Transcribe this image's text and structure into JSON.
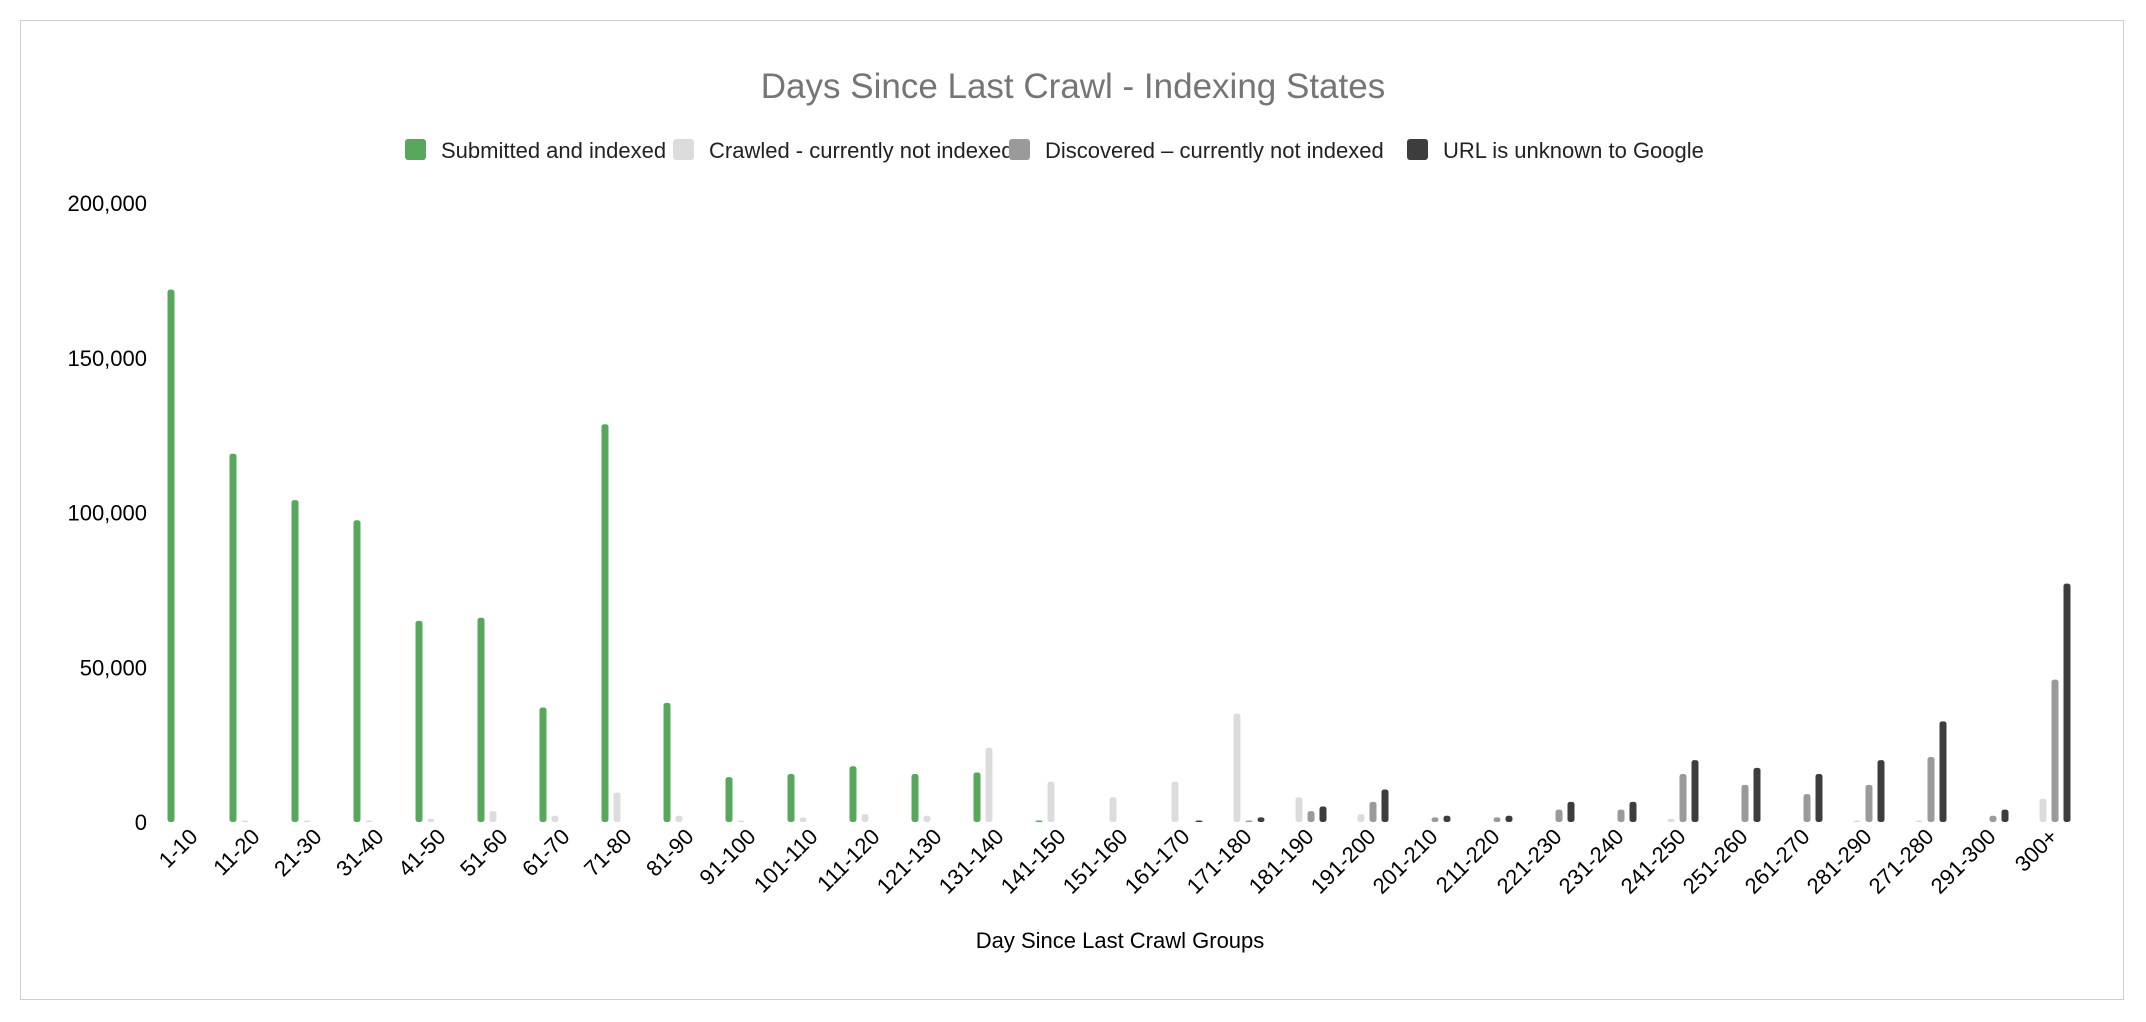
{
  "chart_data": {
    "type": "bar",
    "title": "Days Since Last Crawl - Indexing States",
    "xlabel": "Day Since Last Crawl Groups",
    "ylabel": "",
    "ylim": [
      0,
      200000
    ],
    "yticks": [
      0,
      50000,
      100000,
      150000,
      200000
    ],
    "ytick_labels": [
      "0",
      "50,000",
      "100,000",
      "150,000",
      "200,000"
    ],
    "grid": false,
    "legend_position": "top",
    "categories": [
      "1-10",
      "11-20",
      "21-30",
      "31-40",
      "41-50",
      "51-60",
      "61-70",
      "71-80",
      "81-90",
      "91-100",
      "101-110",
      "111-120",
      "121-130",
      "131-140",
      "141-150",
      "151-160",
      "161-170",
      "171-180",
      "181-190",
      "191-200",
      "201-210",
      "211-220",
      "221-230",
      "231-240",
      "241-250",
      "251-260",
      "261-270",
      "281-290",
      "271-280",
      "291-300",
      "300+"
    ],
    "series": [
      {
        "name": "Submitted and indexed",
        "color": "#57a85c",
        "values": [
          172000,
          119000,
          104000,
          97500,
          65000,
          66000,
          37000,
          128500,
          38500,
          14500,
          15500,
          18000,
          15500,
          16000,
          500,
          0,
          0,
          0,
          0,
          0,
          0,
          0,
          0,
          0,
          0,
          0,
          0,
          0,
          0,
          0,
          0
        ]
      },
      {
        "name": "Crawled - currently not indexed",
        "color": "#dcdcdc",
        "values": [
          0,
          500,
          500,
          500,
          1000,
          3500,
          2000,
          9500,
          2000,
          500,
          1500,
          2500,
          2000,
          24000,
          13000,
          8000,
          13000,
          35000,
          8000,
          2500,
          0,
          0,
          0,
          0,
          1000,
          0,
          0,
          500,
          500,
          0,
          7500
        ]
      },
      {
        "name": "Discovered – currently not indexed",
        "color": "#9a9a9a",
        "values": [
          0,
          0,
          0,
          0,
          0,
          0,
          0,
          0,
          0,
          0,
          0,
          0,
          0,
          0,
          0,
          0,
          0,
          500,
          3500,
          6500,
          1500,
          1500,
          4000,
          4000,
          15500,
          12000,
          9000,
          12000,
          21000,
          2000,
          46000
        ]
      },
      {
        "name": "URL is unknown to Google",
        "color": "#3d3d3d",
        "values": [
          0,
          0,
          0,
          0,
          0,
          0,
          0,
          0,
          0,
          0,
          0,
          0,
          0,
          0,
          0,
          0,
          500,
          1500,
          5000,
          10500,
          2000,
          2000,
          6500,
          6500,
          20000,
          17500,
          15500,
          20000,
          32500,
          4000,
          77000
        ]
      }
    ]
  }
}
